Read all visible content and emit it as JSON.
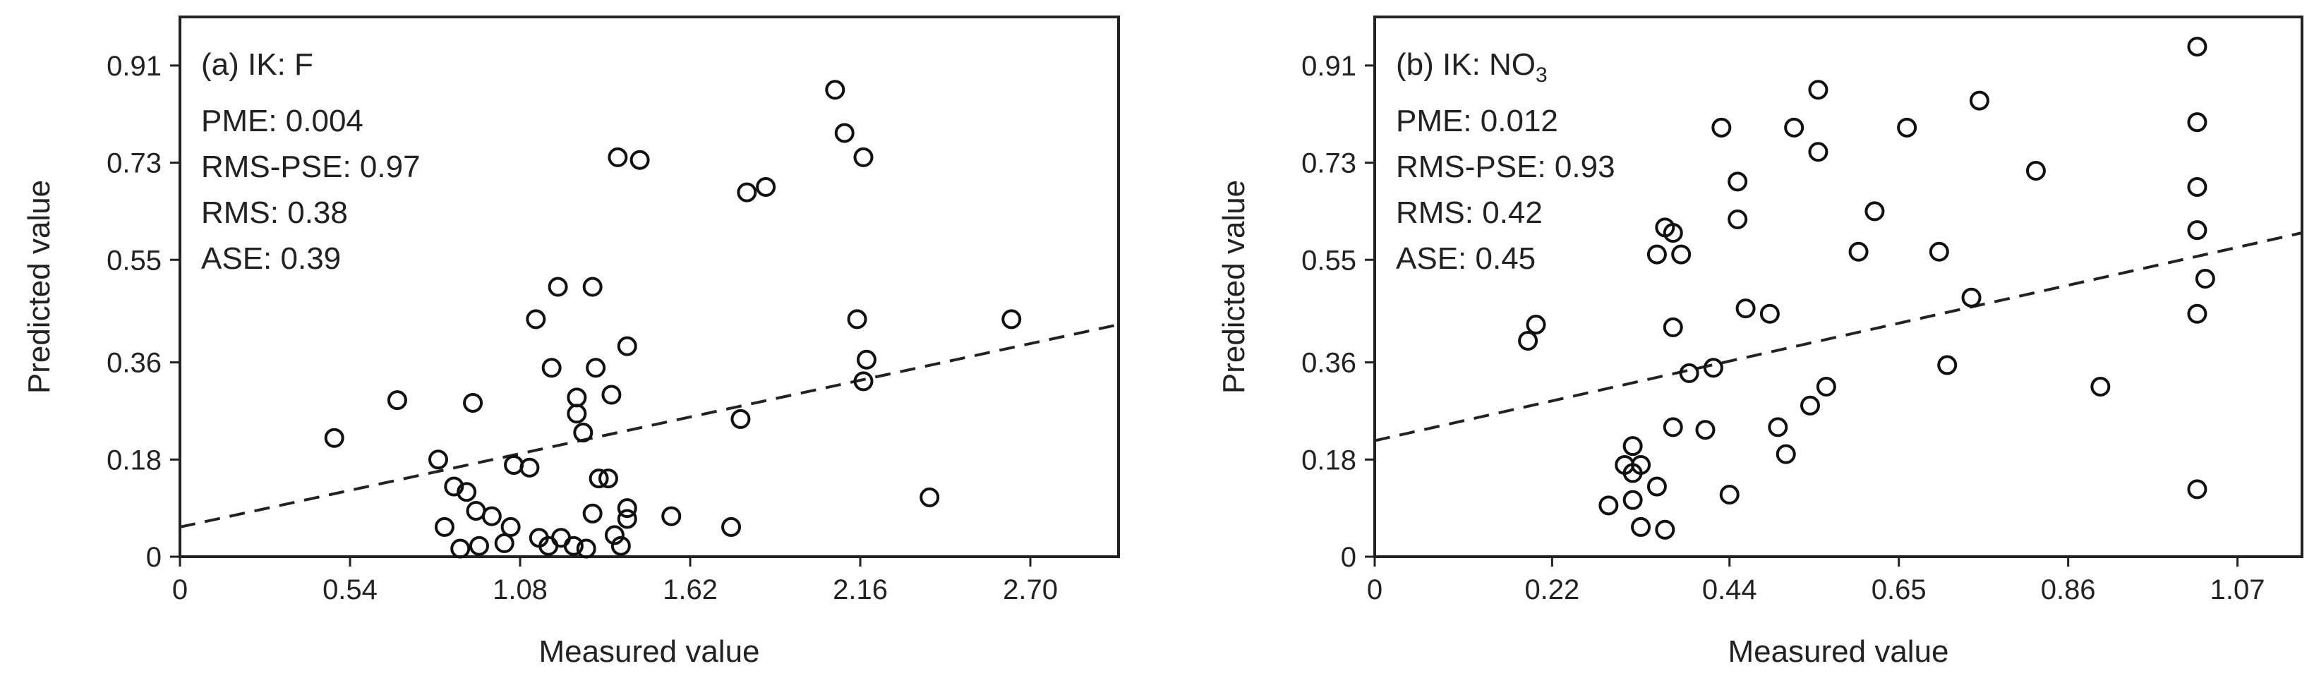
{
  "chart_data": [
    {
      "type": "scatter",
      "panel_label": "(a) IK: F",
      "stats": [
        "PME: 0.004",
        "RMS-PSE: 0.97",
        "RMS: 0.38",
        "ASE: 0.39"
      ],
      "xlabel": "Measured value",
      "ylabel": "Predicted value",
      "xlim": [
        0,
        2.98
      ],
      "ylim": [
        0,
        1.0
      ],
      "xticks": [
        0,
        0.54,
        1.08,
        1.62,
        2.16,
        2.7
      ],
      "xtick_labels": [
        "0",
        "0.54",
        "1.08",
        "1.62",
        "2.16",
        "2.70"
      ],
      "yticks": [
        0,
        0.18,
        0.36,
        0.55,
        0.73,
        0.91
      ],
      "ytick_labels": [
        "0",
        "0.18",
        "0.36",
        "0.55",
        "0.73",
        "0.91"
      ],
      "grid": false,
      "marker": "open-circle",
      "trend_line": {
        "style": "dashed",
        "x": [
          0,
          2.98
        ],
        "y": [
          0.055,
          0.43
        ]
      },
      "points": [
        {
          "x": 0.49,
          "y": 0.22
        },
        {
          "x": 0.69,
          "y": 0.29
        },
        {
          "x": 0.82,
          "y": 0.18
        },
        {
          "x": 0.84,
          "y": 0.055
        },
        {
          "x": 0.87,
          "y": 0.13
        },
        {
          "x": 0.89,
          "y": 0.015
        },
        {
          "x": 0.91,
          "y": 0.12
        },
        {
          "x": 0.93,
          "y": 0.285
        },
        {
          "x": 0.94,
          "y": 0.085
        },
        {
          "x": 0.95,
          "y": 0.02
        },
        {
          "x": 0.99,
          "y": 0.075
        },
        {
          "x": 1.03,
          "y": 0.025
        },
        {
          "x": 1.05,
          "y": 0.055
        },
        {
          "x": 1.06,
          "y": 0.17
        },
        {
          "x": 1.11,
          "y": 0.165
        },
        {
          "x": 1.13,
          "y": 0.44
        },
        {
          "x": 1.14,
          "y": 0.035
        },
        {
          "x": 1.17,
          "y": 0.02
        },
        {
          "x": 1.18,
          "y": 0.35
        },
        {
          "x": 1.2,
          "y": 0.5
        },
        {
          "x": 1.21,
          "y": 0.035
        },
        {
          "x": 1.25,
          "y": 0.02
        },
        {
          "x": 1.26,
          "y": 0.265
        },
        {
          "x": 1.26,
          "y": 0.295
        },
        {
          "x": 1.28,
          "y": 0.23
        },
        {
          "x": 1.29,
          "y": 0.015
        },
        {
          "x": 1.31,
          "y": 0.08
        },
        {
          "x": 1.31,
          "y": 0.5
        },
        {
          "x": 1.32,
          "y": 0.35
        },
        {
          "x": 1.33,
          "y": 0.145
        },
        {
          "x": 1.36,
          "y": 0.145
        },
        {
          "x": 1.37,
          "y": 0.3
        },
        {
          "x": 1.38,
          "y": 0.04
        },
        {
          "x": 1.39,
          "y": 0.74
        },
        {
          "x": 1.4,
          "y": 0.02
        },
        {
          "x": 1.42,
          "y": 0.07
        },
        {
          "x": 1.42,
          "y": 0.09
        },
        {
          "x": 1.42,
          "y": 0.39
        },
        {
          "x": 1.46,
          "y": 0.735
        },
        {
          "x": 1.56,
          "y": 0.075
        },
        {
          "x": 1.75,
          "y": 0.055
        },
        {
          "x": 1.78,
          "y": 0.255
        },
        {
          "x": 1.8,
          "y": 0.675
        },
        {
          "x": 1.86,
          "y": 0.685
        },
        {
          "x": 2.08,
          "y": 0.865
        },
        {
          "x": 2.11,
          "y": 0.785
        },
        {
          "x": 2.15,
          "y": 0.44
        },
        {
          "x": 2.17,
          "y": 0.74
        },
        {
          "x": 2.17,
          "y": 0.325
        },
        {
          "x": 2.18,
          "y": 0.365
        },
        {
          "x": 2.38,
          "y": 0.11
        },
        {
          "x": 2.64,
          "y": 0.44
        }
      ]
    },
    {
      "type": "scatter",
      "panel_label": "(b) IK: NO",
      "panel_label_subscript": "3",
      "stats": [
        "PME: 0.012",
        "RMS-PSE: 0.93",
        "RMS: 0.42",
        "ASE: 0.45"
      ],
      "xlabel": "Measured value",
      "ylabel": "Predicted value",
      "xlim": [
        0,
        1.15
      ],
      "ylim": [
        0,
        1.0
      ],
      "xticks": [
        0,
        0.22,
        0.44,
        0.65,
        0.86,
        1.07
      ],
      "xtick_labels": [
        "0",
        "0.22",
        "0.44",
        "0.65",
        "0.86",
        "1.07"
      ],
      "yticks": [
        0,
        0.18,
        0.36,
        0.55,
        0.73,
        0.91
      ],
      "ytick_labels": [
        "0",
        "0.18",
        "0.36",
        "0.55",
        "0.73",
        "0.91"
      ],
      "grid": false,
      "marker": "open-circle",
      "trend_line": {
        "style": "dashed",
        "x": [
          0,
          1.15
        ],
        "y": [
          0.215,
          0.6
        ]
      },
      "points": [
        {
          "x": 0.19,
          "y": 0.4
        },
        {
          "x": 0.2,
          "y": 0.43
        },
        {
          "x": 0.29,
          "y": 0.095
        },
        {
          "x": 0.31,
          "y": 0.17
        },
        {
          "x": 0.32,
          "y": 0.205
        },
        {
          "x": 0.32,
          "y": 0.105
        },
        {
          "x": 0.32,
          "y": 0.155
        },
        {
          "x": 0.33,
          "y": 0.17
        },
        {
          "x": 0.33,
          "y": 0.055
        },
        {
          "x": 0.35,
          "y": 0.13
        },
        {
          "x": 0.35,
          "y": 0.56
        },
        {
          "x": 0.36,
          "y": 0.61
        },
        {
          "x": 0.36,
          "y": 0.05
        },
        {
          "x": 0.37,
          "y": 0.6
        },
        {
          "x": 0.37,
          "y": 0.425
        },
        {
          "x": 0.37,
          "y": 0.24
        },
        {
          "x": 0.38,
          "y": 0.56
        },
        {
          "x": 0.39,
          "y": 0.34
        },
        {
          "x": 0.41,
          "y": 0.235
        },
        {
          "x": 0.42,
          "y": 0.35
        },
        {
          "x": 0.43,
          "y": 0.795
        },
        {
          "x": 0.44,
          "y": 0.115
        },
        {
          "x": 0.45,
          "y": 0.695
        },
        {
          "x": 0.45,
          "y": 0.625
        },
        {
          "x": 0.46,
          "y": 0.46
        },
        {
          "x": 0.49,
          "y": 0.45
        },
        {
          "x": 0.5,
          "y": 0.24
        },
        {
          "x": 0.51,
          "y": 0.19
        },
        {
          "x": 0.52,
          "y": 0.795
        },
        {
          "x": 0.54,
          "y": 0.28
        },
        {
          "x": 0.55,
          "y": 0.865
        },
        {
          "x": 0.55,
          "y": 0.75
        },
        {
          "x": 0.56,
          "y": 0.315
        },
        {
          "x": 0.6,
          "y": 0.565
        },
        {
          "x": 0.62,
          "y": 0.64
        },
        {
          "x": 0.66,
          "y": 0.795
        },
        {
          "x": 0.7,
          "y": 0.565
        },
        {
          "x": 0.71,
          "y": 0.355
        },
        {
          "x": 0.74,
          "y": 0.48
        },
        {
          "x": 0.75,
          "y": 0.845
        },
        {
          "x": 0.82,
          "y": 0.715
        },
        {
          "x": 0.9,
          "y": 0.315
        },
        {
          "x": 1.02,
          "y": 0.45
        },
        {
          "x": 1.02,
          "y": 0.945
        },
        {
          "x": 1.02,
          "y": 0.805
        },
        {
          "x": 1.02,
          "y": 0.685
        },
        {
          "x": 1.02,
          "y": 0.605
        },
        {
          "x": 1.02,
          "y": 0.125
        },
        {
          "x": 1.03,
          "y": 0.515
        }
      ]
    }
  ]
}
